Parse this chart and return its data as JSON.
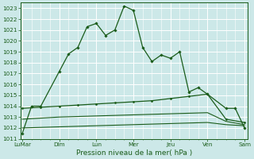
{
  "title": "",
  "xlabel": "Pression niveau de la mer( hPa )",
  "ylabel": "",
  "bg_color": "#cce8e8",
  "grid_color": "#ffffff",
  "line_color": "#1a5c1a",
  "ylim": [
    1011,
    1023.5
  ],
  "yticks": [
    1011,
    1012,
    1013,
    1014,
    1015,
    1016,
    1017,
    1018,
    1019,
    1020,
    1021,
    1022,
    1023
  ],
  "day_labels": [
    "LuMar",
    "Dim",
    "Lun",
    "Mer",
    "Jeu",
    "Ven",
    "Sam"
  ],
  "day_positions": [
    0,
    24,
    48,
    72,
    96,
    120,
    144
  ],
  "series1_x": [
    0,
    6,
    12,
    24,
    30,
    36,
    42,
    48,
    54,
    60,
    66,
    72,
    78,
    84,
    90,
    96,
    102,
    108,
    114,
    120,
    132,
    138,
    144
  ],
  "series1_y": [
    1011.5,
    1014.0,
    1014.0,
    1017.2,
    1018.8,
    1019.4,
    1021.3,
    1021.6,
    1020.5,
    1021.0,
    1023.2,
    1022.8,
    1019.4,
    1018.1,
    1018.7,
    1018.4,
    1019.0,
    1015.3,
    1015.7,
    1015.1,
    1013.8,
    1013.8,
    1012.0
  ],
  "series2_x": [
    0,
    12,
    24,
    36,
    48,
    60,
    72,
    84,
    96,
    108,
    120,
    132,
    144
  ],
  "series2_y": [
    1013.8,
    1013.9,
    1014.0,
    1014.1,
    1014.2,
    1014.3,
    1014.4,
    1014.5,
    1014.7,
    1014.9,
    1015.1,
    1012.8,
    1012.5
  ],
  "series3_x": [
    0,
    12,
    24,
    36,
    48,
    60,
    72,
    84,
    96,
    108,
    120,
    132,
    144
  ],
  "series3_y": [
    1012.8,
    1012.9,
    1013.0,
    1013.05,
    1013.1,
    1013.15,
    1013.2,
    1013.25,
    1013.3,
    1013.35,
    1013.4,
    1012.6,
    1012.3
  ],
  "series4_x": [
    0,
    12,
    24,
    36,
    48,
    60,
    72,
    84,
    96,
    108,
    120,
    132,
    144
  ],
  "series4_y": [
    1012.0,
    1012.05,
    1012.1,
    1012.15,
    1012.2,
    1012.25,
    1012.3,
    1012.35,
    1012.4,
    1012.45,
    1012.5,
    1012.3,
    1012.2
  ],
  "tick_fontsize": 5.2,
  "xlabel_fontsize": 6.5
}
